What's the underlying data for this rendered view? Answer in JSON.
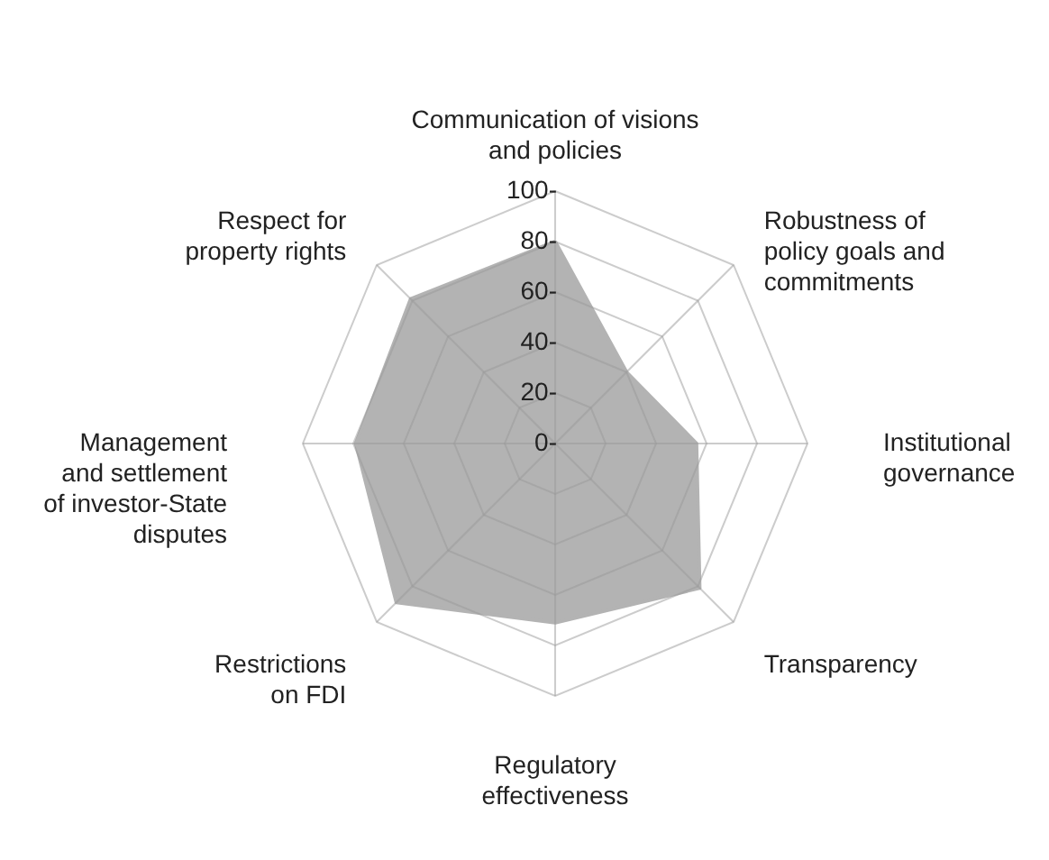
{
  "chart_data": {
    "type": "radar",
    "categories": [
      "Communication of visions\nand policies",
      "Robustness of\npolicy goals and\ncommitments",
      "Institutional\ngovernance",
      "Transparency",
      "Regulatory\neffectiveness",
      "Restrictions\non FDI",
      "Management\nand settlement\nof investor-State\ndisputes",
      "Respect for\nproperty rights"
    ],
    "series": [
      {
        "color": "#b3b3b3",
        "values": [
          80,
          40,
          56,
          81,
          71,
          89,
          79,
          81
        ]
      }
    ],
    "ylim": [
      0,
      100
    ],
    "yticks": [
      {
        "value": 0,
        "label": "0-"
      },
      {
        "value": 20,
        "label": "20-"
      },
      {
        "value": 40,
        "label": "40-"
      },
      {
        "value": 60,
        "label": "60-"
      },
      {
        "value": 80,
        "label": "80-"
      },
      {
        "value": 100,
        "label": "100-"
      }
    ],
    "grid": true
  }
}
